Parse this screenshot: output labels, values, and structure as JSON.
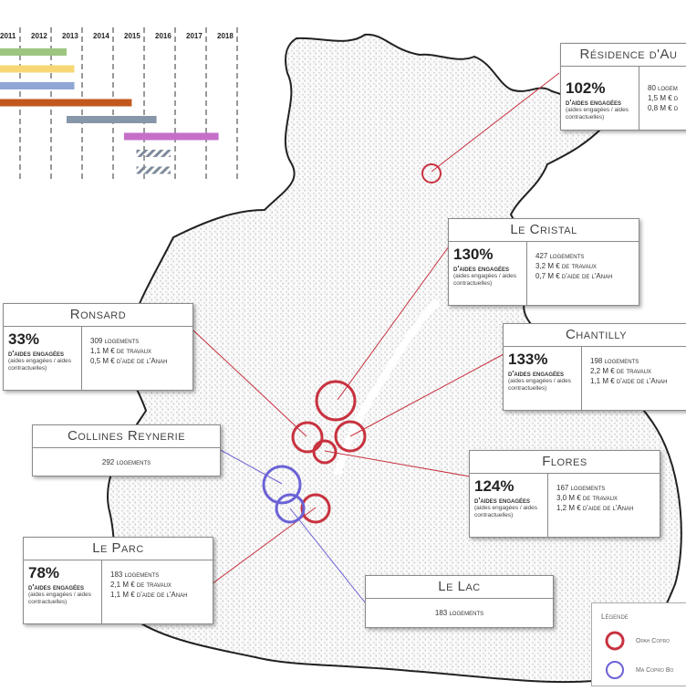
{
  "timeline": {
    "years": [
      "2011",
      "2012",
      "2013",
      "2014",
      "2015",
      "2016",
      "2017",
      "2018"
    ],
    "bars": [
      {
        "color": "#9cc67f",
        "start": 2011,
        "end": 2013.5
      },
      {
        "color": "#f7d775",
        "start": 2011,
        "end": 2013.75
      },
      {
        "color": "#8fa6d6",
        "start": 2011,
        "end": 2013.75
      },
      {
        "color": "#c1581c",
        "start": 2011,
        "end": 2015.6
      },
      {
        "color": "#8796a8",
        "start": 2013.5,
        "end": 2016.4
      },
      {
        "color": "#c56fc9",
        "start": 2015.35,
        "end": 2018.4
      },
      {
        "color": "#7d8a99",
        "start": 2015.75,
        "end": 2016.85,
        "hatched": true
      },
      {
        "color": "#7d8a99",
        "start": 2015.75,
        "end": 2016.85,
        "hatched": true
      }
    ]
  },
  "sites": [
    {
      "id": "residence",
      "title": "Résidence d'Au",
      "pct": "102%",
      "stats": [
        "80 logem",
        "1,5 M € d",
        "0,8 M € d"
      ]
    },
    {
      "id": "cristal",
      "title": "Le Cristal",
      "pct": "130%",
      "stats": [
        "427 logements",
        "3,2 M € de travaux",
        "0,7 M € d'aide de l'Anah"
      ]
    },
    {
      "id": "ronsard",
      "title": "Ronsard",
      "pct": "33%",
      "stats": [
        "309 logements",
        "1,1 M € de travaux",
        "0,5 M € d'aide de l'Anah"
      ]
    },
    {
      "id": "chantilly",
      "title": "Chantilly",
      "pct": "133%",
      "stats": [
        "198 logements",
        "2,2 M € de travaux",
        "1,1 M € d'aide de l'Anah"
      ]
    },
    {
      "id": "flores",
      "title": "Flores",
      "pct": "124%",
      "stats": [
        "167 logements",
        "3,0 M € de travaux",
        "1,2 M € d'aide de l'Anah"
      ]
    },
    {
      "id": "parc",
      "title": "Le Parc",
      "pct": "78%",
      "stats": [
        "183 logements",
        "2,1 M € de travaux",
        "1,1 M € d'aide de l'Anah"
      ]
    }
  ],
  "simple_sites": [
    {
      "id": "collines",
      "title": "Collines Reynerie",
      "text": "292 logements"
    },
    {
      "id": "lac",
      "title": "Le Lac",
      "text": "183 logements"
    }
  ],
  "pct_label": "d'aides engagées",
  "pct_note": "(aides engagées / aides contractuelles)",
  "legend": {
    "title": "Légende",
    "items": [
      {
        "label": "Opah Copro",
        "color": "#c8323f"
      },
      {
        "label": "Ma Copro Bo",
        "color": "#6b62d6"
      }
    ]
  },
  "colors": {
    "red": "#c8323f",
    "blue": "#6b62d6"
  }
}
